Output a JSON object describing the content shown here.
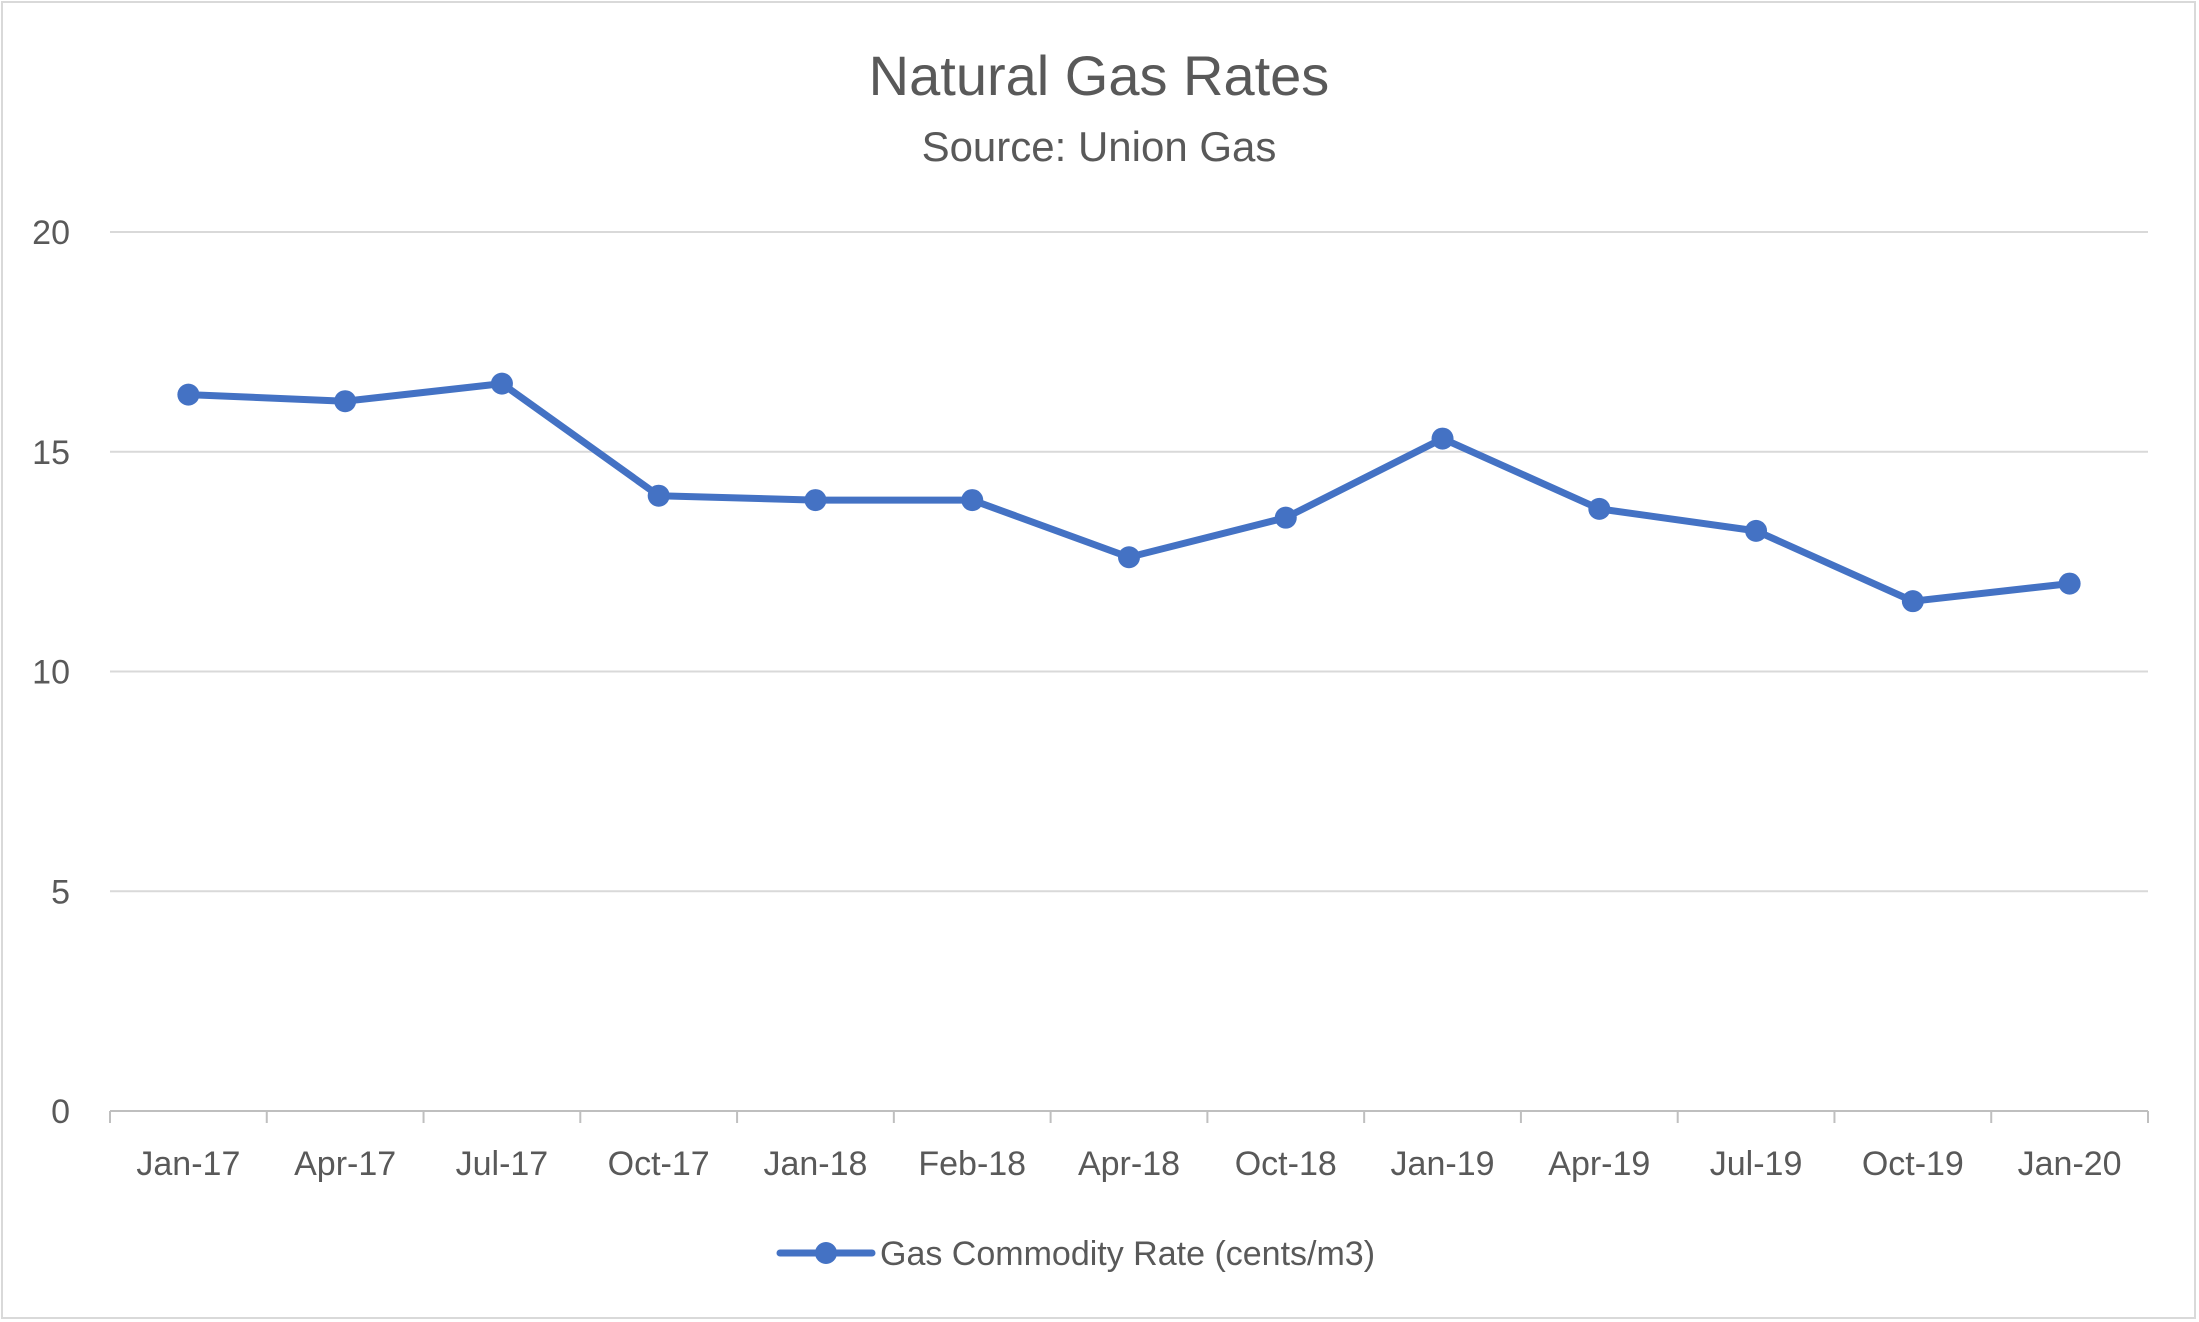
{
  "chart_data": {
    "type": "line",
    "title": "Natural Gas Rates",
    "subtitle": "Source: Union Gas",
    "xlabel": "",
    "ylabel": "",
    "categories": [
      "Jan-17",
      "Apr-17",
      "Jul-17",
      "Oct-17",
      "Jan-18",
      "Feb-18",
      "Apr-18",
      "Oct-18",
      "Jan-19",
      "Apr-19",
      "Jul-19",
      "Oct-19",
      "Jan-20"
    ],
    "series": [
      {
        "name": "Gas Commodity Rate (cents/m3)",
        "color": "#4472c4",
        "values": [
          16.3,
          16.15,
          16.55,
          14.0,
          13.9,
          13.9,
          12.6,
          13.5,
          15.3,
          13.7,
          13.2,
          11.6,
          12.0
        ]
      }
    ],
    "ylim": [
      0,
      20
    ],
    "yticks": [
      0,
      5,
      10,
      15,
      20
    ],
    "grid": true,
    "legend": "bottom",
    "colors": {
      "grid": "#d9d9d9",
      "text": "#595959",
      "axis": "#bfbfbf"
    }
  }
}
